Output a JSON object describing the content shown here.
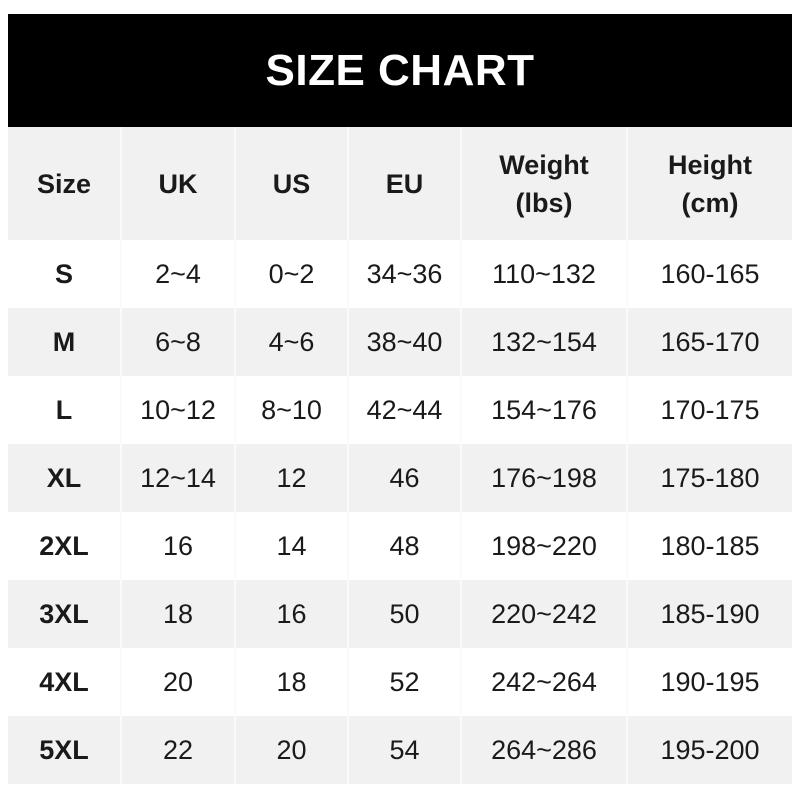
{
  "title": "SIZE CHART",
  "headers": [
    "Size",
    "UK",
    "US",
    "EU",
    "Weight\n(lbs)",
    "Height\n(cm)"
  ],
  "header_lines": [
    [
      "Size"
    ],
    [
      "UK"
    ],
    [
      "US"
    ],
    [
      "EU"
    ],
    [
      "Weight",
      "(lbs)"
    ],
    [
      "Height",
      "(cm)"
    ]
  ],
  "rows": [
    [
      "S",
      "2~4",
      "0~2",
      "34~36",
      "110~132",
      "160-165"
    ],
    [
      "M",
      "6~8",
      "4~6",
      "38~40",
      "132~154",
      "165-170"
    ],
    [
      "L",
      "10~12",
      "8~10",
      "42~44",
      "154~176",
      "170-175"
    ],
    [
      "XL",
      "12~14",
      "12",
      "46",
      "176~198",
      "175-180"
    ],
    [
      "2XL",
      "16",
      "14",
      "48",
      "198~220",
      "180-185"
    ],
    [
      "3XL",
      "18",
      "16",
      "50",
      "220~242",
      "185-190"
    ],
    [
      "4XL",
      "20",
      "18",
      "52",
      "242~264",
      "190-195"
    ],
    [
      "5XL",
      "22",
      "20",
      "54",
      "264~286",
      "195-200"
    ]
  ],
  "colors": {
    "title_bg": "#000000",
    "stripe": "#f1f1f1"
  }
}
